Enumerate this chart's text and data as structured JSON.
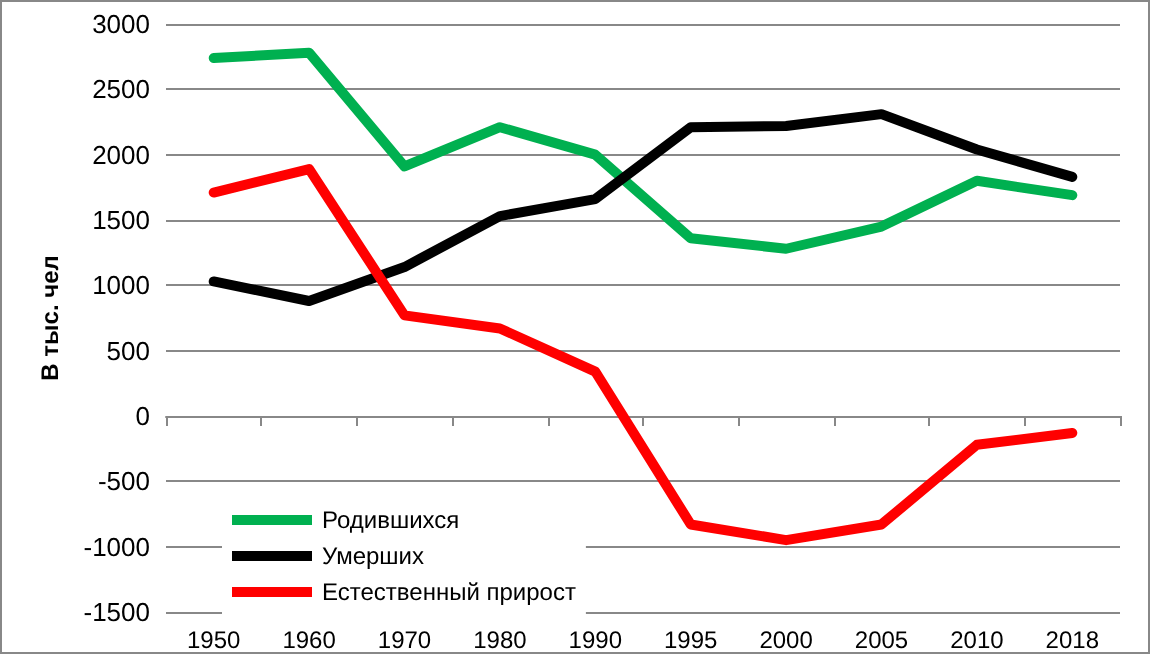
{
  "chart_data": {
    "type": "line",
    "ylabel": "В тыс. чел",
    "categories": [
      "1950",
      "1960",
      "1970",
      "1980",
      "1990",
      "1995",
      "2000",
      "2005",
      "2010",
      "2018"
    ],
    "series": [
      {
        "name": "Родившихся",
        "color": "#00b050",
        "values": [
          2740,
          2780,
          1910,
          2210,
          2000,
          1360,
          1280,
          1450,
          1800,
          1690
        ]
      },
      {
        "name": "Умерших",
        "color": "#000000",
        "values": [
          1030,
          880,
          1140,
          1530,
          1660,
          2210,
          2220,
          2310,
          2040,
          1830
        ]
      },
      {
        "name": "Естественный прирост",
        "color": "#ff0000",
        "values": [
          1710,
          1890,
          770,
          670,
          340,
          -830,
          -950,
          -830,
          -220,
          -130
        ]
      }
    ],
    "ylim": [
      -1500,
      3000
    ],
    "yticks": [
      -1500,
      -1000,
      -500,
      0,
      500,
      1000,
      1500,
      2000,
      2500,
      3000
    ],
    "grid": "y",
    "legend": "bottom left",
    "marker": "none",
    "line_style": "solid"
  }
}
